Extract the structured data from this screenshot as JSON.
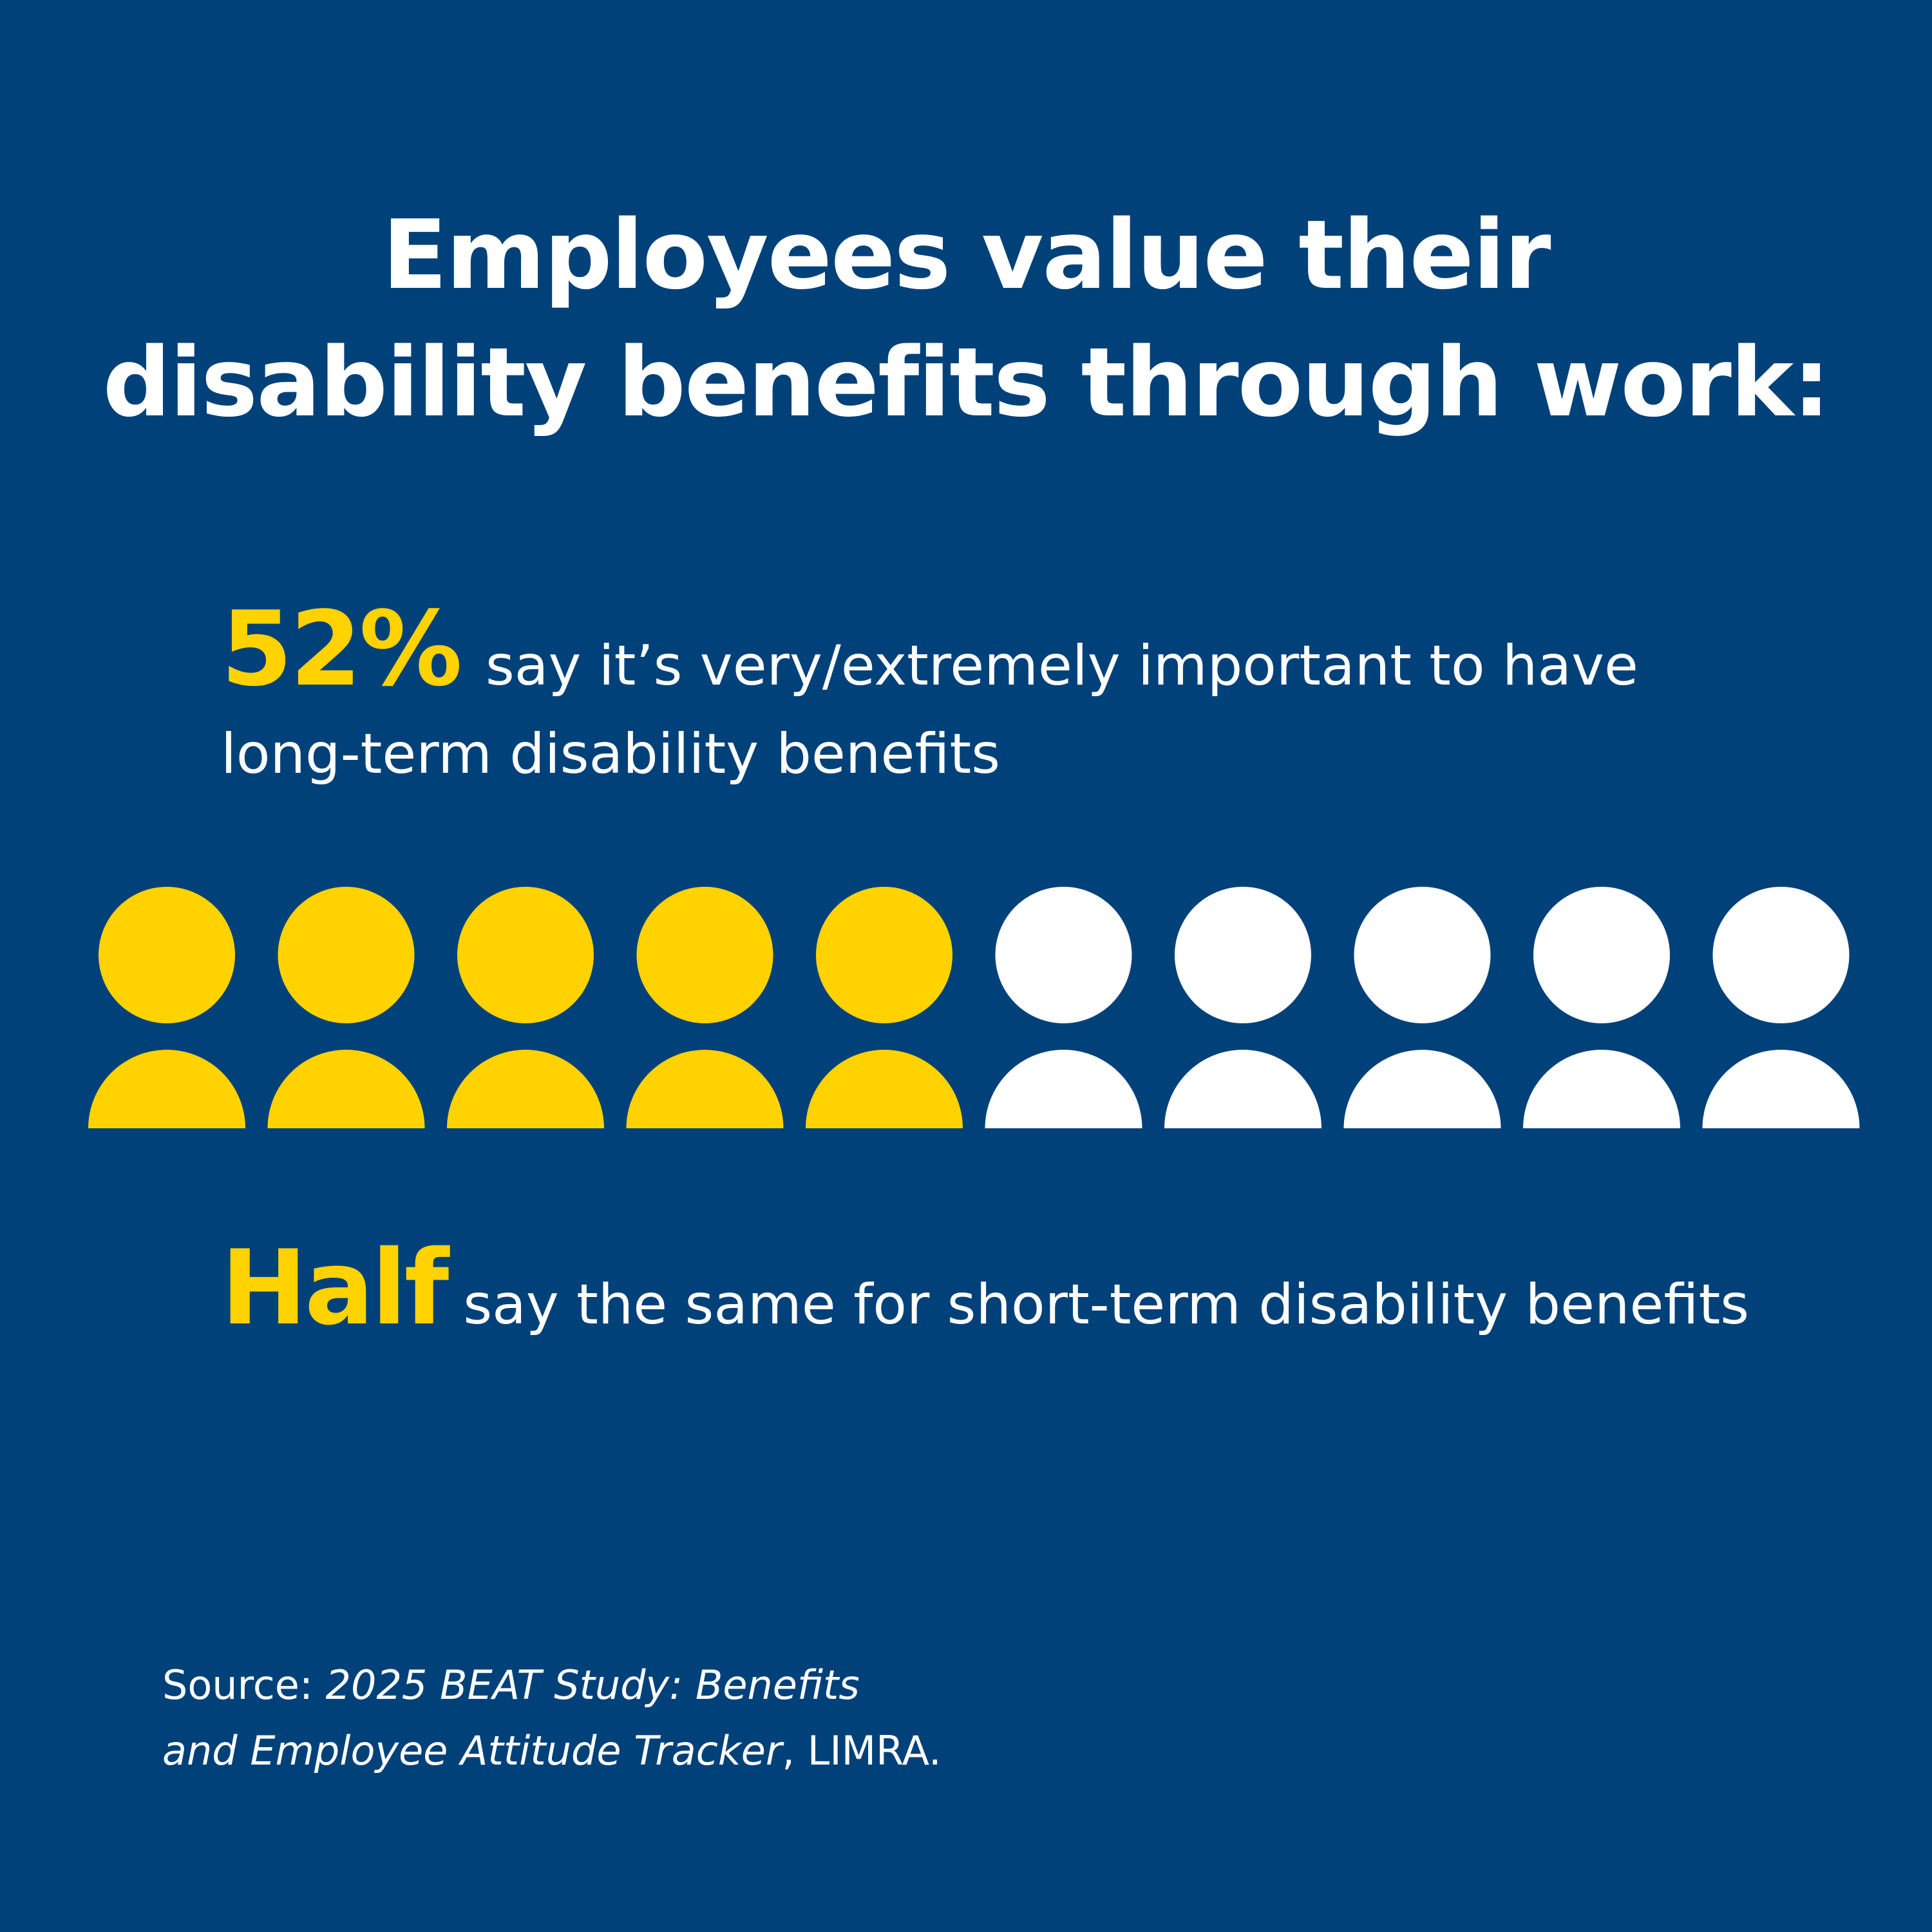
{
  "title": {
    "line1": "Employees value their",
    "line2": "disability benefits through work:"
  },
  "stat_long_term": {
    "value": "52%",
    "text_line1": "say it’s very/extremely important to have",
    "text_line2": "long-term disability benefits"
  },
  "stat_short_term": {
    "value": "Half",
    "text": "say the same for short-term disability benefits"
  },
  "source": {
    "prefix": "Source: ",
    "title_part1": "2025 BEAT Study: Benefits",
    "title_part2": "and Employee Attitude Tracker",
    "suffix": ", LIMRA."
  },
  "colors": {
    "background": "#01417A",
    "highlight": "#FFD200",
    "text": "#FFFFFF"
  },
  "chart_data": {
    "type": "pictogram",
    "total_icons": 10,
    "highlighted_icons": 5,
    "icon": "person-icon",
    "highlight_color": "#FFD200",
    "base_color": "#FFFFFF"
  }
}
